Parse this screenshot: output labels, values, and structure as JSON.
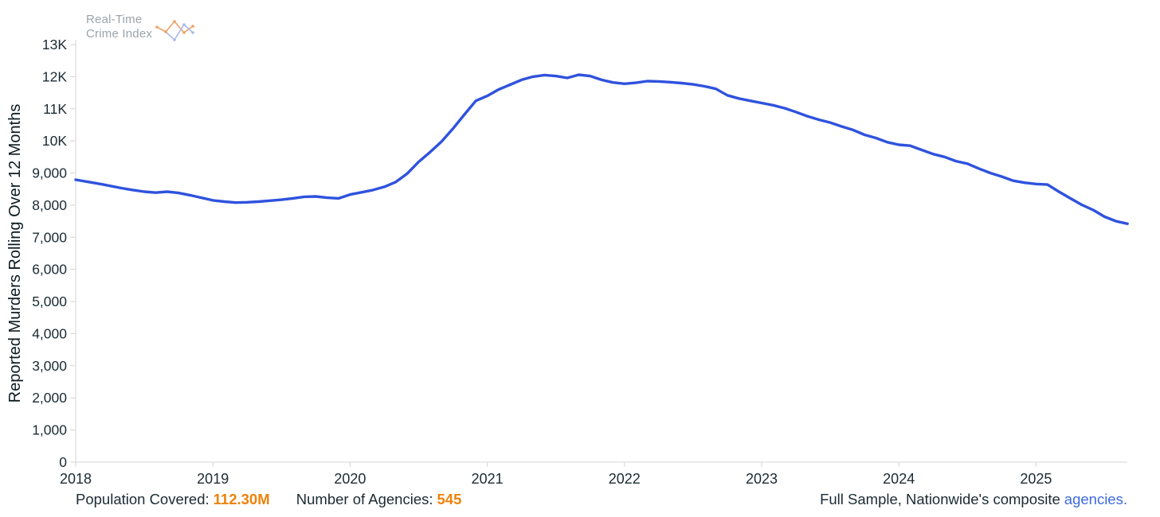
{
  "logo": {
    "line1": "Real-Time",
    "line2": "Crime Index"
  },
  "chart_data": {
    "type": "line",
    "title": "",
    "xlabel": "",
    "ylabel": "Reported Murders Rolling Over 12 Months",
    "ylim": [
      0,
      13000
    ],
    "grid": false,
    "legend": "none",
    "x_unit": "month",
    "x_start": "2018-01",
    "x_end": "2025-09",
    "x_tick_labels": [
      "2018",
      "2019",
      "2020",
      "2021",
      "2022",
      "2023",
      "2024",
      "2025"
    ],
    "y_ticks": [
      {
        "value": 0,
        "label": "0"
      },
      {
        "value": 1000,
        "label": "1,000"
      },
      {
        "value": 2000,
        "label": "2,000"
      },
      {
        "value": 3000,
        "label": "3,000"
      },
      {
        "value": 4000,
        "label": "4,000"
      },
      {
        "value": 5000,
        "label": "5,000"
      },
      {
        "value": 6000,
        "label": "6,000"
      },
      {
        "value": 7000,
        "label": "7,000"
      },
      {
        "value": 8000,
        "label": "8,000"
      },
      {
        "value": 9000,
        "label": "9,000"
      },
      {
        "value": 10000,
        "label": "10K"
      },
      {
        "value": 11000,
        "label": "11K"
      },
      {
        "value": 12000,
        "label": "12K"
      },
      {
        "value": 13000,
        "label": "13K"
      }
    ],
    "series": [
      {
        "name": "Reported Murders Rolling Over 12 Months",
        "color": "#2f52de",
        "monthly_values": [
          8790,
          8730,
          8670,
          8600,
          8530,
          8470,
          8420,
          8390,
          8420,
          8380,
          8310,
          8230,
          8150,
          8110,
          8080,
          8090,
          8110,
          8140,
          8170,
          8210,
          8260,
          8270,
          8230,
          8210,
          8330,
          8400,
          8470,
          8570,
          8720,
          8980,
          9350,
          9650,
          9980,
          10380,
          10820,
          11250,
          11400,
          11600,
          11750,
          11900,
          12000,
          12050,
          12020,
          11960,
          12060,
          12020,
          11900,
          11820,
          11780,
          11810,
          11860,
          11850,
          11830,
          11800,
          11760,
          11700,
          11620,
          11420,
          11320,
          11250,
          11180,
          11110,
          11020,
          10900,
          10770,
          10660,
          10570,
          10450,
          10340,
          10190,
          10090,
          9960,
          9880,
          9850,
          9720,
          9590,
          9500,
          9370,
          9290,
          9140,
          9000,
          8890,
          8760,
          8700,
          8660,
          8640,
          8420,
          8210,
          8010,
          7850,
          7640,
          7500,
          7420
        ]
      }
    ]
  },
  "footer": {
    "population_label": "Population Covered:",
    "population_value": "112.30M",
    "agencies_label": "Number of Agencies:",
    "agencies_value": "545",
    "sample_text": "Full Sample, Nationwide's composite",
    "sample_link": "agencies."
  },
  "colors": {
    "line-blue": "#2f52de",
    "accent-orange": "#ee8209",
    "link-blue": "#3d6ae0",
    "axis-text": "#1b2b33",
    "axis-gray": "#d4d4d4",
    "logo-gray": "#9ba3ab"
  }
}
